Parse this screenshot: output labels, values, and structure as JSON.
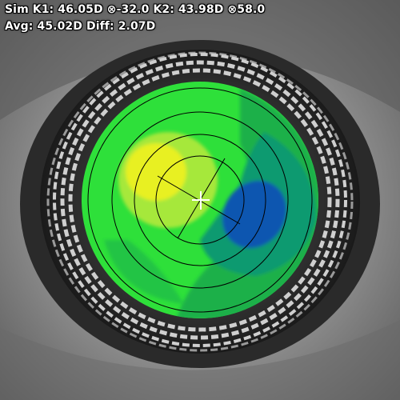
{
  "readout": {
    "sim_k1_label": "Sim K1:",
    "sim_k1_value": "46.05D",
    "sim_k1_axis": "⊗-32.0",
    "k2_label": "K2:",
    "k2_value": "43.98D",
    "k2_axis": "⊗58.0",
    "avg_label": "Avg:",
    "avg_value": "45.02D",
    "diff_label": "Diff:",
    "diff_value": "2.07D"
  },
  "colors": {
    "sclera": "#9a9a9a",
    "iris": "#3a3a3a",
    "placido_ring": "#d8d8d8",
    "map_green": "#2ee03a",
    "map_dark_green": "#1fb04a",
    "map_teal": "#119a70",
    "map_yellow": "#e8f020",
    "map_lime": "#a6e83a",
    "map_blue": "#0a56b0",
    "crosshair": "#ffffff"
  },
  "icons": [
    "crosshair-icon",
    "axis-symbol-icon"
  ]
}
